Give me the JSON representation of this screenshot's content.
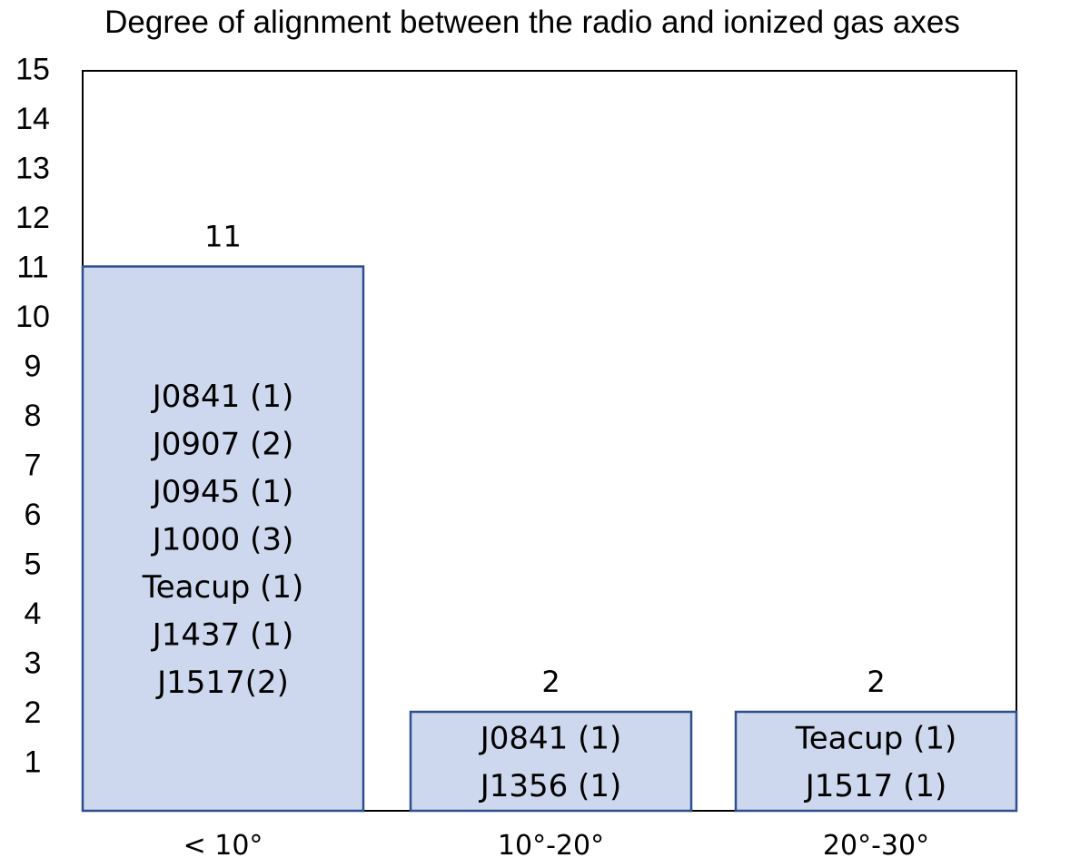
{
  "chart_data": {
    "type": "bar",
    "title": "Degree of alignment between the radio and ionized gas axes",
    "xlabel": "",
    "ylabel": "",
    "categories": [
      "< 10°",
      "10°-20°",
      "20°-30°"
    ],
    "values": [
      11,
      2,
      2
    ],
    "data_labels": [
      "11",
      "2",
      "2"
    ],
    "bar_annotations": [
      [
        "J0841 (1)",
        "J0907 (2)",
        "J0945 (1)",
        "J1000 (3)",
        "Teacup (1)",
        "J1437 (1)",
        "J1517(2)"
      ],
      [
        "J0841 (1)",
        "J1356 (1)"
      ],
      [
        "Teacup (1)",
        "J1517 (1)"
      ]
    ],
    "y_ticks": [
      "1",
      "2",
      "3",
      "4",
      "5",
      "6",
      "7",
      "8",
      "9",
      "10",
      "11",
      "12",
      "13",
      "14",
      "15"
    ],
    "ylim": [
      0,
      15
    ],
    "grid": false,
    "legend": "none",
    "colors": {
      "bar_fill": "#cdd8ee",
      "bar_stroke": "#2f4e8f",
      "frame": "#000000"
    }
  }
}
